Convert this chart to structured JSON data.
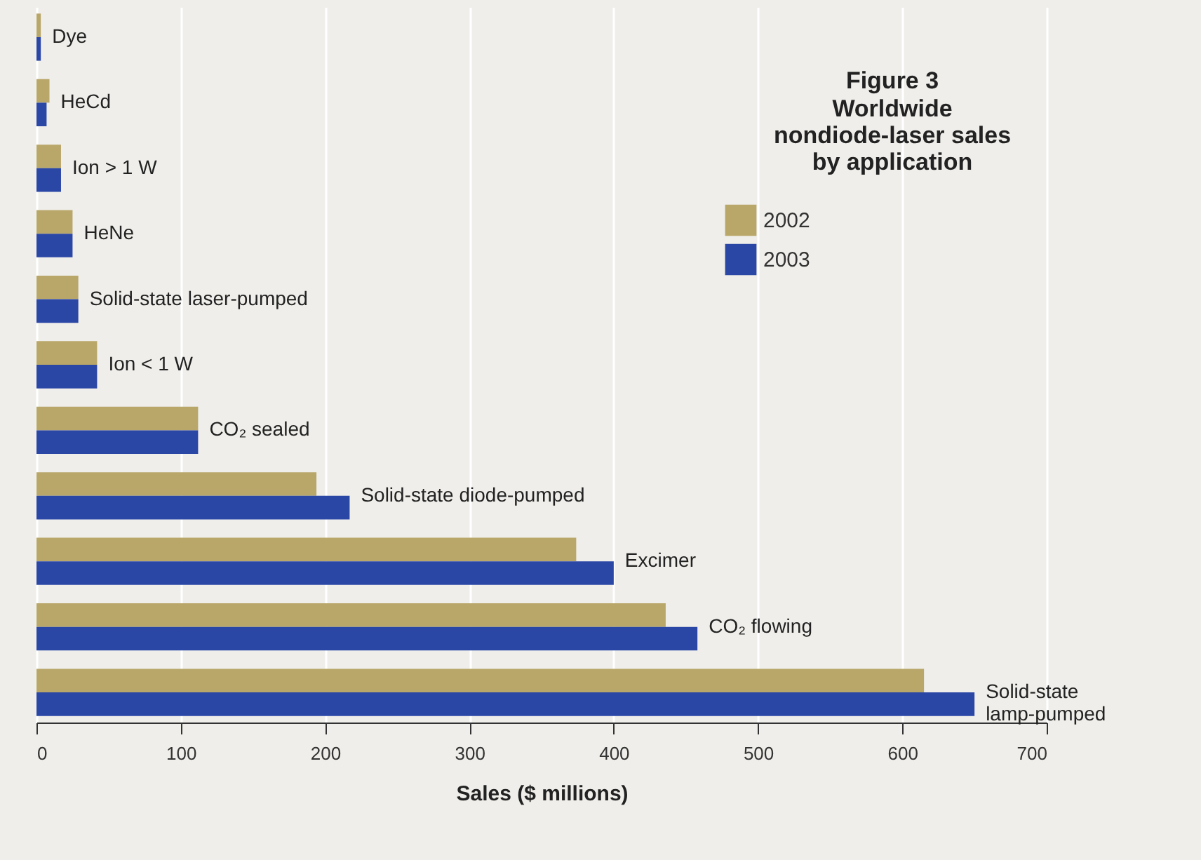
{
  "chart_data": {
    "type": "bar",
    "orientation": "horizontal",
    "title": "Figure 3",
    "subtitle": "Worldwide nondiode-laser sales by application",
    "xlabel": "Sales ($ millions)",
    "categories": [
      "Dye",
      "HeCd",
      "Ion > 1 W",
      "HeNe",
      "Solid-state laser-pumped",
      "Ion < 1 W",
      "CO₂ sealed",
      "Solid-state diode-pumped",
      "Excimer",
      "CO₂ flowing",
      "Solid-state\nlamp-pumped"
    ],
    "series": [
      {
        "name": "2002",
        "color": "#b9a76a",
        "values": [
          3,
          9,
          17,
          25,
          29,
          42,
          112,
          194,
          374,
          436,
          615
        ]
      },
      {
        "name": "2003",
        "color": "#2b47a6",
        "values": [
          3,
          7,
          17,
          25,
          29,
          42,
          112,
          217,
          400,
          458,
          650
        ]
      }
    ],
    "xlim": [
      0,
      700
    ],
    "xticks": [
      0,
      100,
      200,
      300,
      400,
      500,
      600,
      700
    ],
    "grid": "x",
    "legend": "top right",
    "tick_labels": "x"
  }
}
